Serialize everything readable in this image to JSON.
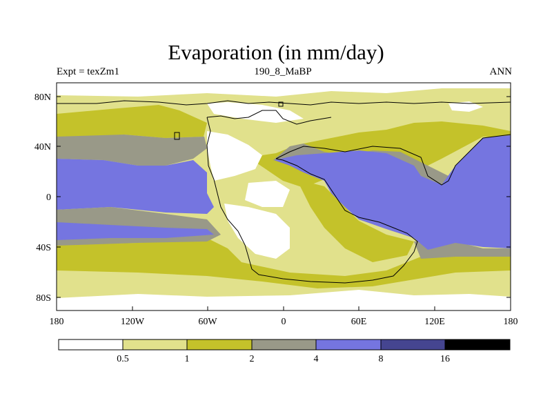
{
  "title": "Evaporation (in mm/day)",
  "subtitle_left": "Expt = texZm1",
  "subtitle_center": "190_8_MaBP",
  "subtitle_right": "ANN",
  "y_ticks": [
    "80N",
    "40N",
    "0",
    "40S",
    "80S"
  ],
  "x_ticks": [
    "180",
    "120W",
    "60W",
    "0",
    "60E",
    "120E",
    "180"
  ],
  "colorbar": {
    "labels": [
      "0.5",
      "1",
      "2",
      "4",
      "8",
      "16"
    ],
    "colors": [
      "#ffffff",
      "#e1e18c",
      "#c4c22a",
      "#999988",
      "#7575e0",
      "#454590",
      "#000000"
    ]
  },
  "colors": {
    "lt05": "#ffffff",
    "c05_1": "#e1e18c",
    "c1_2": "#c4c22a",
    "c2_4": "#999988",
    "c4_8": "#7575e0",
    "outline": "#000000"
  }
}
